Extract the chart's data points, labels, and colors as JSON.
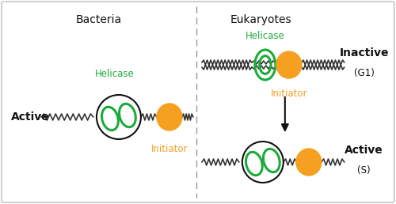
{
  "panel_bg": "#ffffff",
  "border_color": "#bbbbbb",
  "title_bacteria": "Bacteria",
  "title_eukaryotes": "Eukaryotes",
  "label_active_left": "Active",
  "label_inactive_right_line1": "Inactive",
  "label_inactive_right_line2": "(G1)",
  "label_active_right_line1": "Active",
  "label_active_right_line2": "(S)",
  "label_helicase": "Helicase",
  "label_initiator": "Initiator",
  "green_color": "#1aab3a",
  "orange_color": "#f5a020",
  "black_color": "#111111",
  "divider_color": "#999999",
  "title_fontsize": 10,
  "active_fontsize": 10,
  "annot_fontsize": 8.5,
  "side_fontsize": 10
}
